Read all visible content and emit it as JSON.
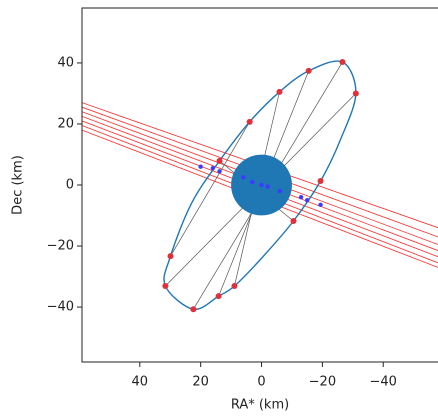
{
  "chart_data": {
    "type": "scatter",
    "xlabel": "RA* (km)",
    "ylabel": "Dec (km)",
    "xlim": [
      59,
      -58
    ],
    "ylim": [
      -58,
      58
    ],
    "xticks": [
      40,
      20,
      0,
      {
        "value": -20,
        "label": "−20"
      },
      {
        "value": -40,
        "label": "−40"
      }
    ],
    "yticks": [
      {
        "value": -40,
        "label": "−40"
      },
      {
        "value": -20,
        "label": "−20"
      },
      0,
      20,
      40
    ],
    "ellipse": {
      "color": "#1f77b4",
      "x": [
        -26.6,
        -31,
        -26,
        -19.4,
        -10.5,
        0,
        8.9,
        14.1,
        22.4,
        31.6,
        29.9,
        23,
        13.8,
        3.9,
        -5.9,
        -15.5
      ],
      "y": [
        40.3,
        30,
        15,
        1.3,
        -11.8,
        -24,
        -33.1,
        -36.4,
        -40.7,
        -33.1,
        -23.3,
        -6,
        7.9,
        20.7,
        30.5,
        37.4
      ]
    },
    "points": {
      "color": "#e0303a",
      "x": [
        -26.6,
        -31,
        -19.4,
        -10.5,
        8.9,
        14.1,
        22.4,
        31.6,
        29.9,
        13.8,
        3.9,
        -5.9,
        -15.5
      ],
      "y": [
        40.3,
        30,
        1.3,
        -11.8,
        -33.1,
        -36.4,
        -40.7,
        -33.1,
        -23.3,
        7.9,
        20.7,
        30.5,
        37.4
      ]
    },
    "chords": [
      {
        "x": [
          22.4,
          -26.6
        ],
        "y": [
          -40.7,
          40.3
        ]
      },
      {
        "x": [
          14.1,
          -15.5
        ],
        "y": [
          -36.4,
          37.4
        ]
      },
      {
        "x": [
          8.9,
          -5.9
        ],
        "y": [
          -33.1,
          30.5
        ]
      },
      {
        "x": [
          31.6,
          -31
        ],
        "y": [
          -33.1,
          30
        ]
      },
      {
        "x": [
          29.9,
          3.9
        ],
        "y": [
          -23.3,
          20.7
        ]
      },
      {
        "x": [
          13.8,
          -10.5
        ],
        "y": [
          7.9,
          -11.8
        ]
      }
    ],
    "lines": {
      "color": "#ff2a2a",
      "x": [
        59,
        -58
      ],
      "y": [
        [
          27,
          -14
        ],
        [
          25.5,
          -17
        ],
        [
          24,
          -19.5
        ],
        [
          22.5,
          -21.5
        ],
        [
          21,
          -23.5
        ],
        [
          19.5,
          -25.5
        ],
        [
          18,
          -27
        ]
      ]
    },
    "body": {
      "color": "#1f77b4",
      "x": 0,
      "y": 0,
      "r": 10
    },
    "center_points": {
      "color": "#3b3bff",
      "x": [
        20,
        16,
        13.8,
        6,
        3,
        0,
        -2,
        -6,
        -13,
        -15,
        -19.4
      ],
      "y": [
        6,
        5.5,
        4.5,
        2.5,
        1,
        0,
        -0.5,
        -2,
        -4,
        -5,
        -6.5
      ]
    }
  }
}
